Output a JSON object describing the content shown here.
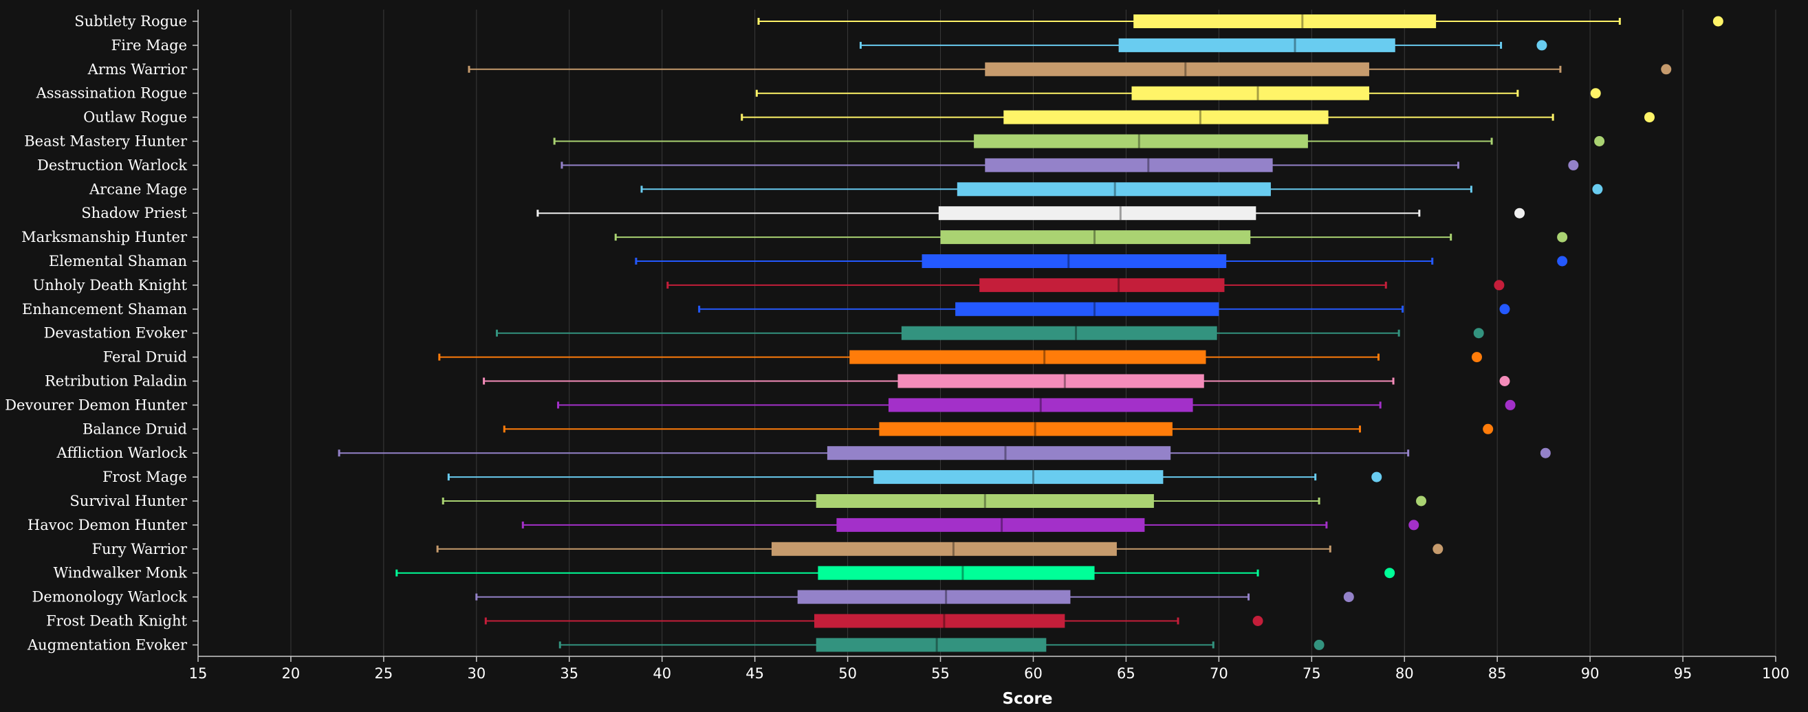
{
  "chart_data": {
    "type": "box",
    "xlabel": "Score",
    "xlim": [
      15,
      100
    ],
    "xticks": [
      15,
      20,
      25,
      30,
      35,
      40,
      45,
      50,
      55,
      60,
      65,
      70,
      75,
      80,
      85,
      90,
      95,
      100
    ],
    "grid": "vertical",
    "series": [
      {
        "name": "Subtlety Rogue",
        "color": "#FFF468",
        "min": 45.2,
        "q1": 65.4,
        "median": 74.5,
        "q3": 81.7,
        "max": 91.6,
        "outlier": 96.9
      },
      {
        "name": "Fire Mage",
        "color": "#69CCF0",
        "min": 50.7,
        "q1": 64.6,
        "median": 74.1,
        "q3": 79.5,
        "max": 85.2,
        "outlier": 87.4
      },
      {
        "name": "Arms Warrior",
        "color": "#C69B6D",
        "min": 29.6,
        "q1": 57.4,
        "median": 68.2,
        "q3": 78.1,
        "max": 88.4,
        "outlier": 94.1
      },
      {
        "name": "Assassination Rogue",
        "color": "#FFF468",
        "min": 45.1,
        "q1": 65.3,
        "median": 72.1,
        "q3": 78.1,
        "max": 86.1,
        "outlier": 90.3
      },
      {
        "name": "Outlaw Rogue",
        "color": "#FFF468",
        "min": 44.3,
        "q1": 58.4,
        "median": 69.0,
        "q3": 75.9,
        "max": 88.0,
        "outlier": 93.2
      },
      {
        "name": "Beast Mastery Hunter",
        "color": "#AAD372",
        "min": 34.2,
        "q1": 56.8,
        "median": 65.7,
        "q3": 74.8,
        "max": 84.7,
        "outlier": 90.5
      },
      {
        "name": "Destruction Warlock",
        "color": "#9482C9",
        "min": 34.6,
        "q1": 57.4,
        "median": 66.2,
        "q3": 72.9,
        "max": 82.9,
        "outlier": 89.1
      },
      {
        "name": "Arcane Mage",
        "color": "#69CCF0",
        "min": 38.9,
        "q1": 55.9,
        "median": 64.4,
        "q3": 72.8,
        "max": 83.6,
        "outlier": 90.4
      },
      {
        "name": "Shadow Priest",
        "color": "#F0F0F0",
        "min": 33.3,
        "q1": 54.9,
        "median": 64.7,
        "q3": 72.0,
        "max": 80.8,
        "outlier": 86.2
      },
      {
        "name": "Marksmanship Hunter",
        "color": "#AAD372",
        "min": 37.5,
        "q1": 55.0,
        "median": 63.3,
        "q3": 71.7,
        "max": 82.5,
        "outlier": 88.5
      },
      {
        "name": "Elemental Shaman",
        "color": "#2459FF",
        "min": 38.6,
        "q1": 54.0,
        "median": 61.9,
        "q3": 70.4,
        "max": 81.5,
        "outlier": 88.5
      },
      {
        "name": "Unholy Death Knight",
        "color": "#C41E3A",
        "min": 40.3,
        "q1": 57.1,
        "median": 64.6,
        "q3": 70.3,
        "max": 79.0,
        "outlier": 85.1
      },
      {
        "name": "Enhancement Shaman",
        "color": "#2459FF",
        "min": 42.0,
        "q1": 55.8,
        "median": 63.3,
        "q3": 70.0,
        "max": 79.9,
        "outlier": 85.4
      },
      {
        "name": "Devastation Evoker",
        "color": "#33937F",
        "min": 31.1,
        "q1": 52.9,
        "median": 62.3,
        "q3": 69.9,
        "max": 79.7,
        "outlier": 84.0
      },
      {
        "name": "Feral Druid",
        "color": "#FF7C0A",
        "min": 28.0,
        "q1": 50.1,
        "median": 60.6,
        "q3": 69.3,
        "max": 78.6,
        "outlier": 83.9
      },
      {
        "name": "Retribution Paladin",
        "color": "#F48CBA",
        "min": 30.4,
        "q1": 52.7,
        "median": 61.7,
        "q3": 69.2,
        "max": 79.4,
        "outlier": 85.4
      },
      {
        "name": "Devourer Demon Hunter",
        "color": "#A330C9",
        "min": 34.4,
        "q1": 52.2,
        "median": 60.4,
        "q3": 68.6,
        "max": 78.7,
        "outlier": 85.7
      },
      {
        "name": "Balance Druid",
        "color": "#FF7C0A",
        "min": 31.5,
        "q1": 51.7,
        "median": 60.1,
        "q3": 67.5,
        "max": 77.6,
        "outlier": 84.5
      },
      {
        "name": "Affliction Warlock",
        "color": "#9482C9",
        "min": 22.6,
        "q1": 48.9,
        "median": 58.5,
        "q3": 67.4,
        "max": 80.2,
        "outlier": 87.6
      },
      {
        "name": "Frost Mage",
        "color": "#69CCF0",
        "min": 28.5,
        "q1": 51.4,
        "median": 60.0,
        "q3": 67.0,
        "max": 75.2,
        "outlier": 78.5
      },
      {
        "name": "Survival Hunter",
        "color": "#AAD372",
        "min": 28.2,
        "q1": 48.3,
        "median": 57.4,
        "q3": 66.5,
        "max": 75.4,
        "outlier": 80.9
      },
      {
        "name": "Havoc Demon Hunter",
        "color": "#A330C9",
        "min": 32.5,
        "q1": 49.4,
        "median": 58.3,
        "q3": 66.0,
        "max": 75.8,
        "outlier": 80.5
      },
      {
        "name": "Fury Warrior",
        "color": "#C69B6D",
        "min": 27.9,
        "q1": 45.9,
        "median": 55.7,
        "q3": 64.5,
        "max": 76.0,
        "outlier": 81.8
      },
      {
        "name": "Windwalker Monk",
        "color": "#00FF98",
        "min": 25.7,
        "q1": 48.4,
        "median": 56.2,
        "q3": 63.3,
        "max": 72.1,
        "outlier": 79.2
      },
      {
        "name": "Demonology Warlock",
        "color": "#9482C9",
        "min": 30.0,
        "q1": 47.3,
        "median": 55.3,
        "q3": 62.0,
        "max": 71.6,
        "outlier": 77.0
      },
      {
        "name": "Frost Death Knight",
        "color": "#C41E3A",
        "min": 30.5,
        "q1": 48.2,
        "median": 55.2,
        "q3": 61.7,
        "max": 67.8,
        "outlier": 72.1
      },
      {
        "name": "Augmentation Evoker",
        "color": "#33937F",
        "min": 34.5,
        "q1": 48.3,
        "median": 54.8,
        "q3": 60.7,
        "max": 69.7,
        "outlier": 75.4
      }
    ]
  },
  "colors": {
    "background": "#131313",
    "grid": "#3a3a3a",
    "axis": "#cccccc",
    "text": "#ffffff"
  }
}
